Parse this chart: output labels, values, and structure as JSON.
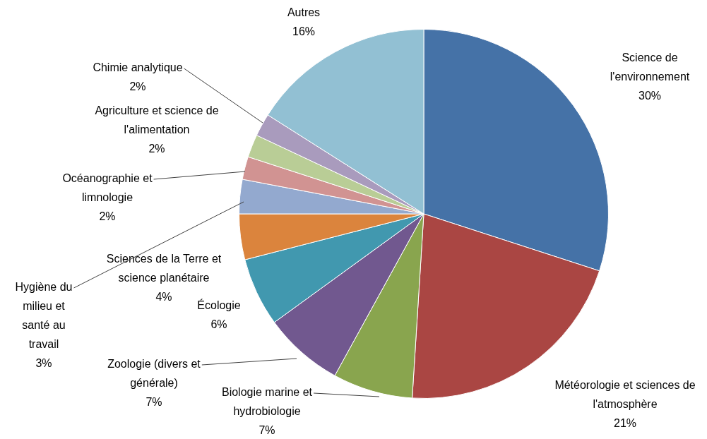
{
  "chart_data": {
    "type": "pie",
    "categories": [
      "Science de l'environnement",
      "Météorologie et sciences de l'atmosphère",
      "Biologie marine et hydrobiologie",
      "Zoologie (divers et générale)",
      "Écologie",
      "Sciences de la Terre et science planétaire",
      "Hygiène du milieu et santé au travail",
      "Océanographie et limnologie",
      "Agriculture et science de l'alimentation",
      "Chimie analytique",
      "Autres"
    ],
    "values": [
      30,
      21,
      7,
      7,
      6,
      4,
      3,
      2,
      2,
      2,
      16
    ],
    "value_labels": [
      "30%",
      "21%",
      "7%",
      "7%",
      "6%",
      "4%",
      "3%",
      "2%",
      "2%",
      "2%",
      "16%"
    ],
    "colors": [
      "#4572a7",
      "#aa4643",
      "#89a54e",
      "#71588f",
      "#4198af",
      "#db843d",
      "#93a9cf",
      "#d19392",
      "#b9cd96",
      "#a99bbd",
      "#92c0d3"
    ],
    "legend": false
  }
}
